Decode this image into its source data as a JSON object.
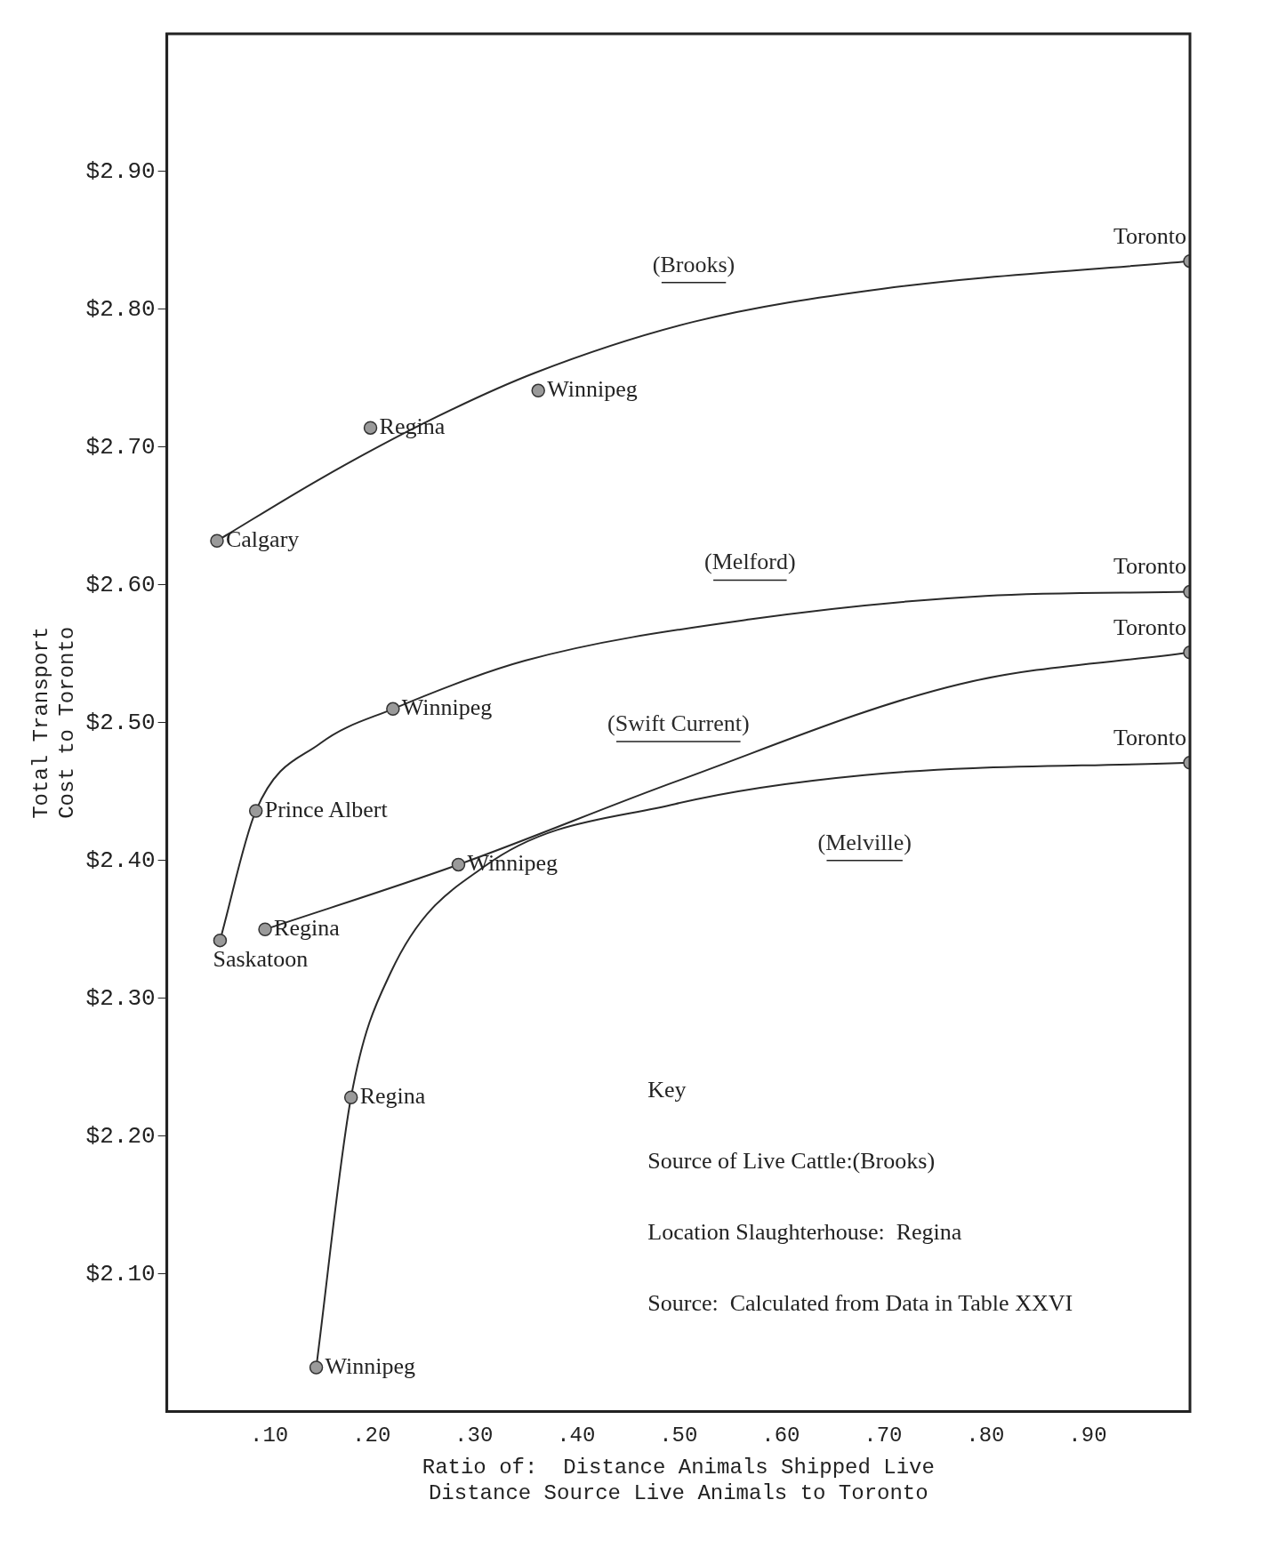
{
  "chart_data": {
    "type": "line",
    "xlabel": "Ratio of:  Distance Animals Shipped Live\nDistance Source Live Animals to Toronto",
    "ylabel": "Total Transport\nCost to Toronto",
    "xlim": [
      0,
      1.0
    ],
    "ylim": [
      2.0,
      3.0
    ],
    "xticks": [
      {
        "value": 0.1,
        "label": ".10"
      },
      {
        "value": 0.2,
        "label": ".20"
      },
      {
        "value": 0.3,
        "label": ".30"
      },
      {
        "value": 0.4,
        "label": ".40"
      },
      {
        "value": 0.5,
        "label": ".50"
      },
      {
        "value": 0.6,
        "label": ".60"
      },
      {
        "value": 0.7,
        "label": ".70"
      },
      {
        "value": 0.8,
        "label": ".80"
      },
      {
        "value": 0.9,
        "label": ".90"
      }
    ],
    "yticks": [
      {
        "value": 2.1,
        "label": "$2.10"
      },
      {
        "value": 2.2,
        "label": "$2.20"
      },
      {
        "value": 2.3,
        "label": "$2.30"
      },
      {
        "value": 2.4,
        "label": "$2.40"
      },
      {
        "value": 2.5,
        "label": "$2.50"
      },
      {
        "value": 2.6,
        "label": "$2.60"
      },
      {
        "value": 2.7,
        "label": "$2.70"
      },
      {
        "value": 2.8,
        "label": "$2.80"
      },
      {
        "value": 2.9,
        "label": "$2.90"
      }
    ],
    "grid": false,
    "legend": false,
    "series": [
      {
        "name": "(Brooks)",
        "marker": "none",
        "color": "#2a2a2a",
        "x": [
          0.049,
          0.15,
          0.25,
          0.36,
          0.515,
          0.7,
          1.0
        ],
        "values": [
          2.632,
          2.677,
          2.717,
          2.754,
          2.791,
          2.815,
          2.835
        ]
      },
      {
        "name": "(Melford)",
        "marker": "none",
        "color": "#2a2a2a",
        "x": [
          0.052,
          0.087,
          0.15,
          0.221,
          0.35,
          0.57,
          0.8,
          1.0
        ],
        "values": [
          2.342,
          2.436,
          2.485,
          2.51,
          2.545,
          2.575,
          2.592,
          2.595
        ]
      },
      {
        "name": "(Swift Current)",
        "marker": "none",
        "color": "#2a2a2a",
        "x": [
          0.096,
          0.285,
          0.5,
          0.775,
          1.0
        ],
        "values": [
          2.35,
          2.397,
          2.458,
          2.528,
          2.551
        ]
      },
      {
        "name": "(Melville)",
        "marker": "none",
        "color": "#2a2a2a",
        "x": [
          0.146,
          0.18,
          0.219,
          0.311,
          0.497,
          0.682,
          1.0
        ],
        "values": [
          2.032,
          2.228,
          2.319,
          2.396,
          2.441,
          2.462,
          2.471
        ]
      },
      {
        "type": "scatter",
        "marker": "circle",
        "color": "#9a9a9a",
        "x": [
          0.049,
          0.199,
          0.363,
          1.0,
          0.052,
          0.087,
          0.221,
          1.0,
          0.096,
          0.285,
          1.0,
          0.146,
          0.18,
          1.0
        ],
        "values": [
          2.632,
          2.714,
          2.741,
          2.835,
          2.342,
          2.436,
          2.51,
          2.595,
          2.35,
          2.397,
          2.551,
          2.032,
          2.228,
          2.471
        ]
      }
    ],
    "annotations": [
      {
        "text": "Calgary",
        "x": 0.049,
        "y": 2.632
      },
      {
        "text": "Regina",
        "x": 0.199,
        "y": 2.714
      },
      {
        "text": "Winnipeg",
        "x": 0.363,
        "y": 2.741
      },
      {
        "text": "Toronto",
        "x": 1.0,
        "y": 2.835
      },
      {
        "text": "Saskatoon",
        "x": 0.052,
        "y": 2.342
      },
      {
        "text": "Prince Albert",
        "x": 0.087,
        "y": 2.436
      },
      {
        "text": "Winnipeg",
        "x": 0.221,
        "y": 2.51
      },
      {
        "text": "Toronto",
        "x": 1.0,
        "y": 2.595
      },
      {
        "text": "Regina",
        "x": 0.096,
        "y": 2.35
      },
      {
        "text": "Winnipeg",
        "x": 0.285,
        "y": 2.397
      },
      {
        "text": "Toronto",
        "x": 1.0,
        "y": 2.551
      },
      {
        "text": "Winnipeg",
        "x": 0.146,
        "y": 2.032
      },
      {
        "text": "Regina",
        "x": 0.18,
        "y": 2.228
      },
      {
        "text": "Toronto",
        "x": 1.0,
        "y": 2.471
      },
      "Key",
      "Source of Live Cattle:(Brooks)",
      "Location Slaughterhouse:  Regina",
      "Source:  Calculated from Data in Table XXVI"
    ]
  }
}
